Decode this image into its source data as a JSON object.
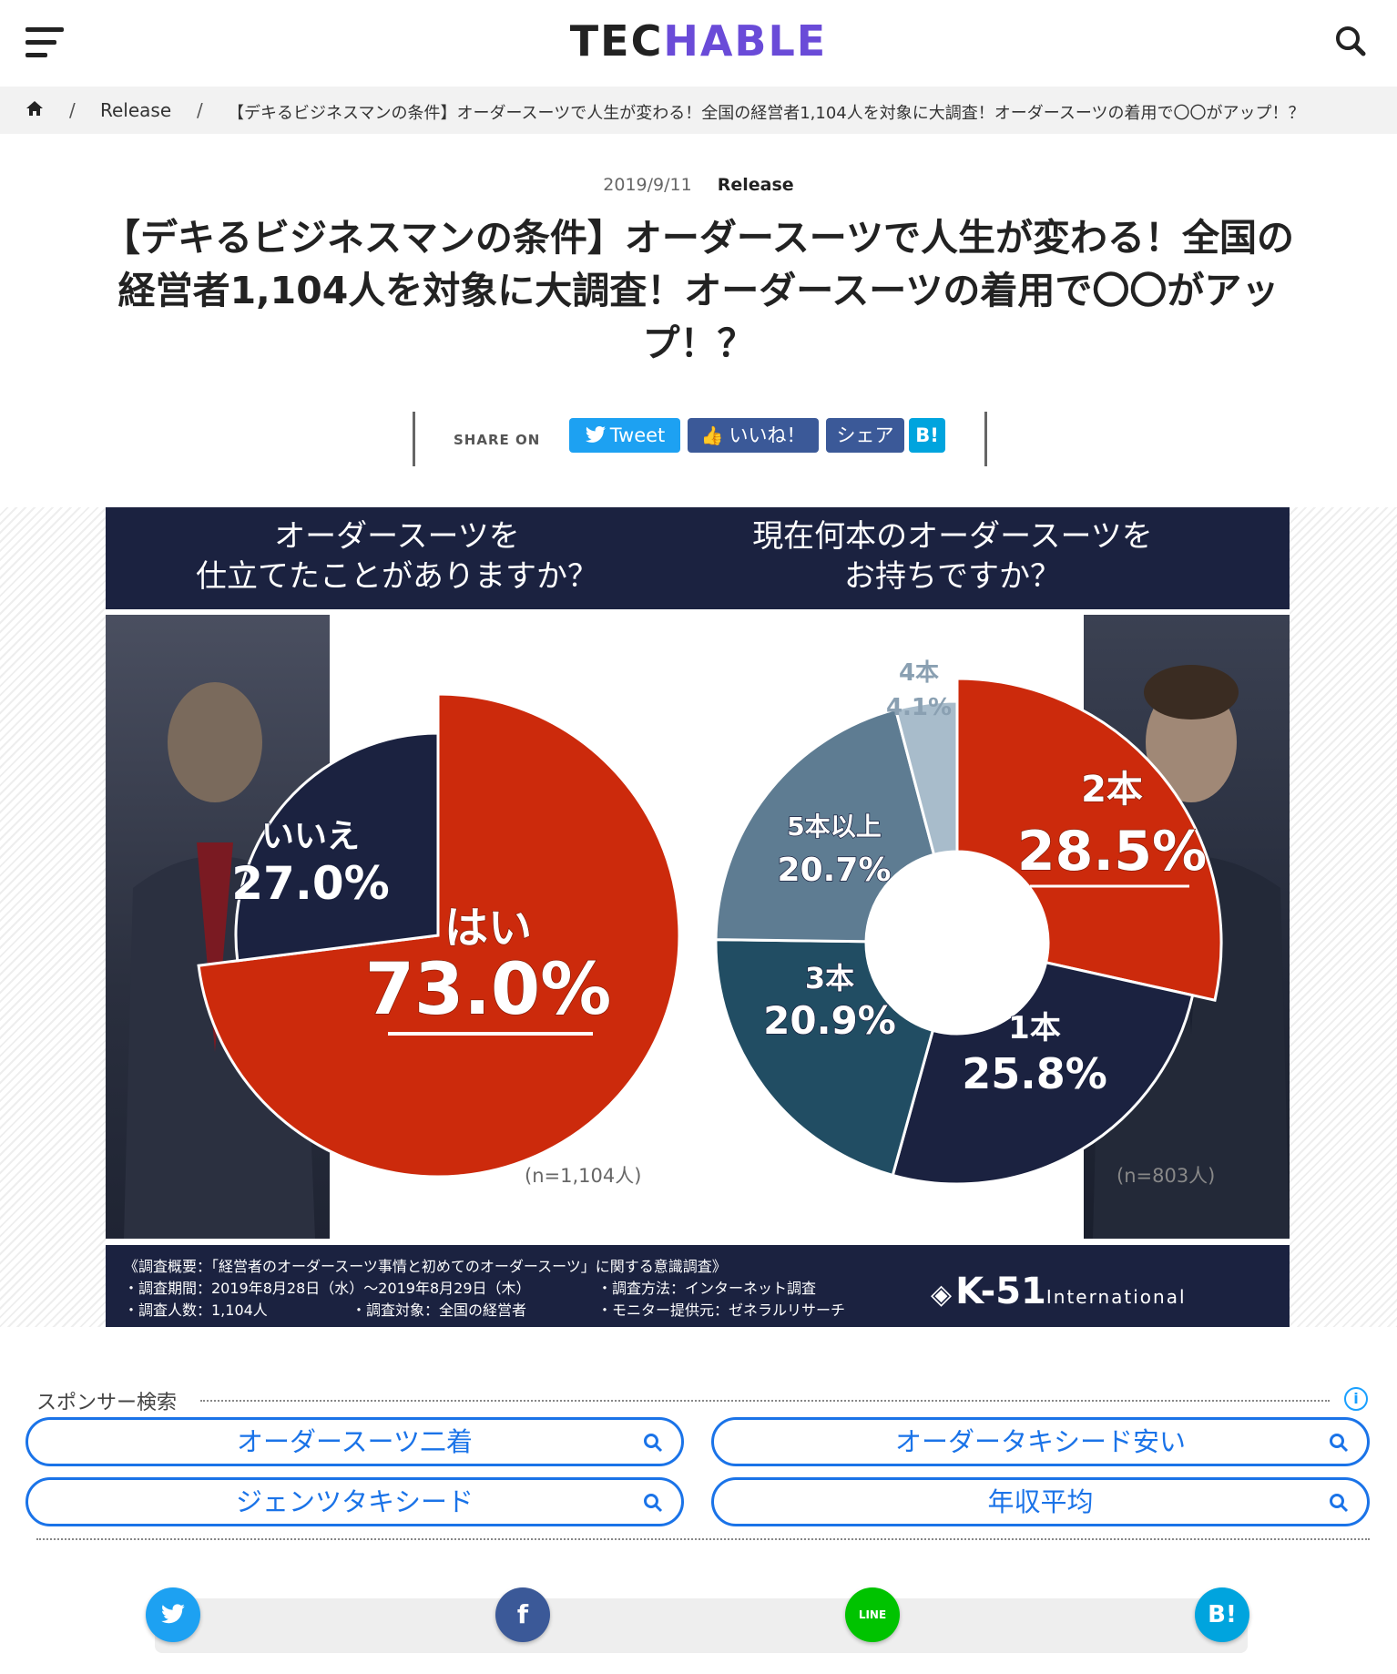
{
  "header": {
    "logo_a": "TEC",
    "logo_b": "HABLE",
    "menu_icon": "hamburger-menu-icon",
    "search_icon": "search-icon",
    "brand_color": "#6a4bd8"
  },
  "breadcrumb": {
    "home_icon": "home-icon",
    "sep": "/",
    "category": "Release",
    "current": "【デキるビジネスマンの条件】オーダースーツで人生が変わる！全国の経営者1,104人を対象に大調査！オーダースーツの着用で〇〇がアップ！？"
  },
  "article": {
    "date": "2019/9/11",
    "category": "Release",
    "title_line1": "【デキるビジネスマンの条件】オーダースーツで人生が変わる！全国の",
    "title_line2": "経営者1,104人を対象に大調査！オーダースーツの着用で〇〇がアッ",
    "title_line3": "プ！？"
  },
  "share": {
    "label": "SHARE ON",
    "tweet": "Tweet",
    "like": "いいね！",
    "share": "シェア",
    "hatena": "B!",
    "colors": {
      "twitter": "#1da1f2",
      "facebook": "#3b5998",
      "hatena": "#00a4de"
    }
  },
  "figure": {
    "q1_line1": "オーダースーツを",
    "q1_line2": "仕立てたことがありますか？",
    "q2_line1": "現在何本のオーダースーツを",
    "q2_line2": "お持ちですか？",
    "n1": "(n=1,104人)",
    "n2": "(n=803人)",
    "foot_title": "《調査概要：「経営者のオーダースーツ事情と初めてのオーダースーツ」に関する意識調査》",
    "foot_period": "・調査期間：2019年8月28日（水）～2019年8月29日（木）",
    "foot_method": "・調査方法：インターネット調査",
    "foot_count": "・調査人数：1,104人",
    "foot_target": "・調査対象：全国の経営者",
    "foot_monitor": "・モニター提供元：ゼネラルリサーチ",
    "brand": "K-51",
    "brand_sub": "International"
  },
  "chart_data": [
    {
      "type": "pie",
      "title": "オーダースーツを仕立てたことがありますか？",
      "categories": [
        "はい",
        "いいえ"
      ],
      "values": [
        73.0,
        27.0
      ],
      "labels": [
        "73.0%",
        "27.0%"
      ],
      "colors": [
        "#cc2a0c",
        "#1b2240"
      ]
    },
    {
      "type": "pie",
      "title": "現在何本のオーダースーツをお持ちですか？",
      "categories": [
        "2本",
        "1本",
        "3本",
        "5本以上",
        "4本"
      ],
      "values": [
        28.5,
        25.8,
        20.9,
        20.7,
        4.1
      ],
      "labels": [
        "28.5%",
        "25.8%",
        "20.9%",
        "20.7%",
        "4.1%"
      ],
      "colors": [
        "#cc2a0c",
        "#1b2240",
        "#214d63",
        "#5e7c92",
        "#a8bccb"
      ]
    }
  ],
  "sponsor": {
    "label": "スポンサー検索",
    "info_icon": "info-icon",
    "items": [
      "オーダースーツ二着",
      "オーダータキシード安い",
      "ジェンツタキシード",
      "年収平均"
    ]
  },
  "bottom_share": {
    "twitter_icon": "twitter-icon",
    "facebook": "f",
    "line": "LINE",
    "hatena": "B!",
    "colors": {
      "twitter": "#1da1f2",
      "facebook": "#3b5998",
      "line": "#00c300",
      "hatena": "#00a4de"
    }
  }
}
